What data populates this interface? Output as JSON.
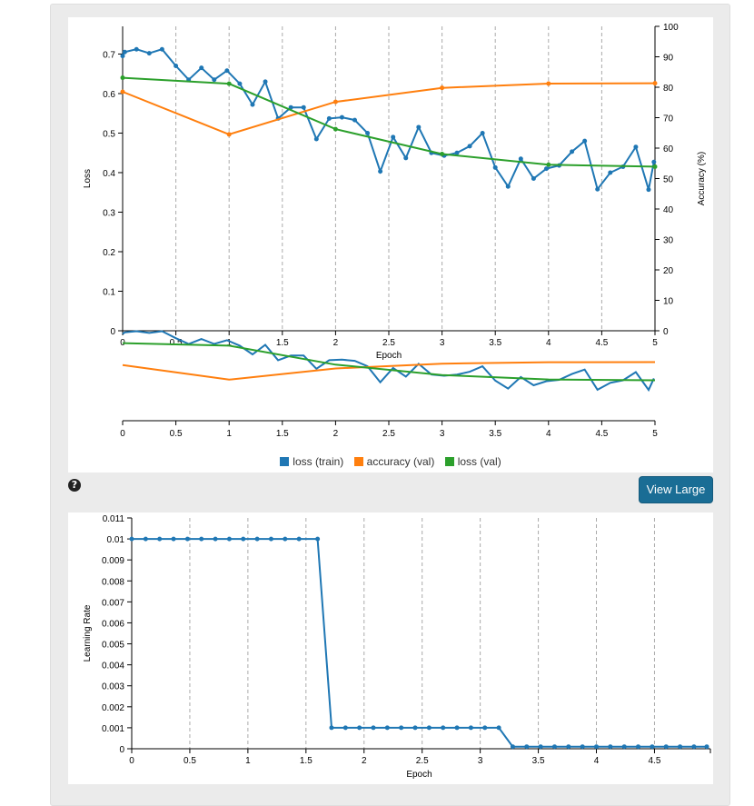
{
  "ui": {
    "help_icon": "?",
    "view_large_label": "View Large"
  },
  "colors": {
    "train": "#1f77b4",
    "accuracy": "#ff7f0e",
    "val": "#2ca02c",
    "lr": "#1f77b4"
  },
  "chart_data": [
    {
      "type": "line",
      "xlabel": "Epoch",
      "ylabel": "Loss",
      "y2label": "Accuracy (%)",
      "xlim": [
        0,
        5
      ],
      "ylim": [
        0,
        0.77
      ],
      "y2lim": [
        0,
        100
      ],
      "x_ticks": [
        0,
        0.5,
        1,
        1.5,
        2,
        2.5,
        3,
        3.5,
        4,
        4.5,
        5
      ],
      "x_tick_labels": [
        "0",
        "0.5",
        "1",
        "1.5",
        "2",
        "2.5",
        "3",
        "3.5",
        "4",
        "4.5",
        "5"
      ],
      "y_ticks": [
        0,
        0.1,
        0.2,
        0.3,
        0.4,
        0.5,
        0.6,
        0.7
      ],
      "y_tick_labels": [
        "0",
        "0.1",
        "0.2",
        "0.3",
        "0.4",
        "0.5",
        "0.6",
        "0.7"
      ],
      "y2_ticks": [
        0,
        10,
        20,
        30,
        40,
        50,
        60,
        70,
        80,
        90,
        100
      ],
      "y2_tick_labels": [
        "0",
        "10",
        "20",
        "30",
        "40",
        "50",
        "60",
        "70",
        "80",
        "90",
        "100"
      ],
      "legend": [
        "loss (train)",
        "accuracy (val)",
        "loss (val)"
      ],
      "grid": "vertical dashed",
      "series": [
        {
          "name": "loss (train)",
          "axis": "left",
          "x": [
            0,
            0.02,
            0.13,
            0.25,
            0.37,
            0.5,
            0.62,
            0.74,
            0.86,
            0.98,
            1.1,
            1.22,
            1.34,
            1.46,
            1.58,
            1.7,
            1.82,
            1.94,
            2.06,
            2.18,
            2.3,
            2.42,
            2.54,
            2.66,
            2.78,
            2.9,
            3.02,
            3.14,
            3.26,
            3.38,
            3.5,
            3.62,
            3.74,
            3.86,
            3.98,
            4.1,
            4.22,
            4.34,
            4.46,
            4.58,
            4.7,
            4.82,
            4.94,
            4.99
          ],
          "values": [
            0.695,
            0.705,
            0.712,
            0.702,
            0.712,
            0.67,
            0.635,
            0.665,
            0.635,
            0.658,
            0.625,
            0.572,
            0.63,
            0.537,
            0.565,
            0.565,
            0.485,
            0.537,
            0.54,
            0.533,
            0.5,
            0.403,
            0.49,
            0.437,
            0.515,
            0.45,
            0.443,
            0.45,
            0.467,
            0.5,
            0.413,
            0.365,
            0.435,
            0.385,
            0.41,
            0.418,
            0.453,
            0.48,
            0.358,
            0.4,
            0.415,
            0.465,
            0.357,
            0.427
          ]
        },
        {
          "name": "accuracy (val)",
          "axis": "right",
          "x": [
            0,
            1,
            2,
            3,
            4,
            5
          ],
          "values": [
            78.5,
            64.5,
            75.2,
            79.8,
            81.2,
            81.3
          ]
        },
        {
          "name": "loss (val)",
          "axis": "left",
          "x": [
            0,
            1,
            2,
            3,
            4,
            5
          ],
          "values": [
            0.64,
            0.625,
            0.51,
            0.447,
            0.42,
            0.415
          ]
        }
      ]
    },
    {
      "type": "line",
      "xlabel": "Epoch",
      "ylabel": "Learning Rate",
      "xlim": [
        0,
        4.95
      ],
      "ylim": [
        0,
        0.011
      ],
      "x_ticks": [
        0,
        0.5,
        1,
        1.5,
        2,
        2.5,
        3,
        3.5,
        4,
        4.5
      ],
      "x_tick_labels": [
        "0",
        "0.5",
        "1",
        "1.5",
        "2",
        "2.5",
        "3",
        "3.5",
        "4",
        "4.5"
      ],
      "y_ticks": [
        0,
        0.001,
        0.002,
        0.003,
        0.004,
        0.005,
        0.006,
        0.007,
        0.008,
        0.009,
        0.01,
        0.011
      ],
      "y_tick_labels": [
        "0",
        "0.001",
        "0.002",
        "0.003",
        "0.004",
        "0.005",
        "0.006",
        "0.007",
        "0.008",
        "0.009",
        "0.01",
        "0.011"
      ],
      "grid": "vertical dashed",
      "series": [
        {
          "name": "learning rate",
          "x": [
            0,
            0.12,
            0.24,
            0.36,
            0.48,
            0.6,
            0.72,
            0.84,
            0.96,
            1.08,
            1.2,
            1.32,
            1.44,
            1.6,
            1.72,
            1.84,
            1.96,
            2.08,
            2.2,
            2.32,
            2.44,
            2.56,
            2.68,
            2.8,
            2.92,
            3.04,
            3.16,
            3.28,
            3.4,
            3.52,
            3.64,
            3.76,
            3.88,
            4,
            4.12,
            4.24,
            4.36,
            4.48,
            4.6,
            4.72,
            4.84,
            4.95
          ],
          "values": [
            0.01,
            0.01,
            0.01,
            0.01,
            0.01,
            0.01,
            0.01,
            0.01,
            0.01,
            0.01,
            0.01,
            0.01,
            0.01,
            0.01,
            0.001,
            0.001,
            0.001,
            0.001,
            0.001,
            0.001,
            0.001,
            0.001,
            0.001,
            0.001,
            0.001,
            0.001,
            0.001,
            0.0001,
            0.0001,
            0.0001,
            0.0001,
            0.0001,
            0.0001,
            0.0001,
            0.0001,
            0.0001,
            0.0001,
            0.0001,
            0.0001,
            0.0001,
            0.0001,
            0.0001
          ]
        }
      ]
    }
  ]
}
